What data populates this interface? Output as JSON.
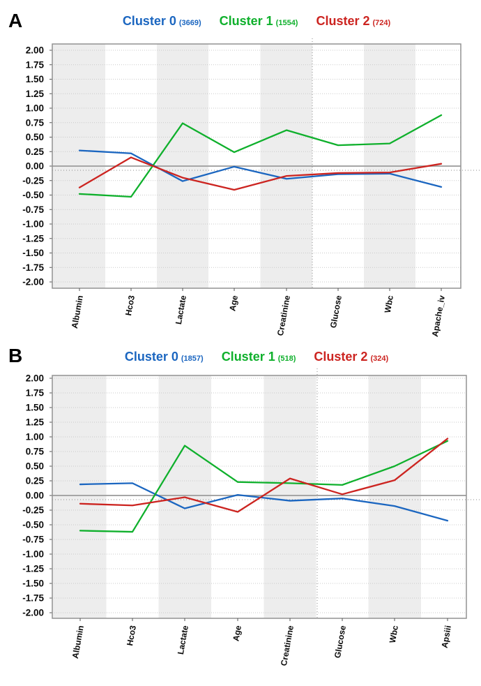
{
  "figure": {
    "description": "Two standardized cluster-profile line charts",
    "background": "#ffffff"
  },
  "panels": [
    {
      "label": "A"
    },
    {
      "label": "B"
    }
  ],
  "chart_data": [
    {
      "id": "A",
      "type": "line",
      "title": "",
      "legend_position": "top-center",
      "grid": "dotted horizontal lines, alternating gray vertical bands",
      "categories": [
        "Albumin",
        "Hco3",
        "Lactate",
        "Age",
        "Creatinine",
        "Glucose",
        "Wbc",
        "Apache_iv"
      ],
      "series": [
        {
          "name": "Cluster 0",
          "count": 3669,
          "color": "#1b66c0",
          "values": [
            0.27,
            0.22,
            -0.26,
            -0.01,
            -0.22,
            -0.14,
            -0.13,
            -0.36
          ]
        },
        {
          "name": "Cluster 1",
          "count": 1554,
          "color": "#0fb02c",
          "values": [
            -0.48,
            -0.53,
            0.74,
            0.24,
            0.62,
            0.36,
            0.39,
            0.88
          ]
        },
        {
          "name": "Cluster 2",
          "count": 724,
          "color": "#cc2420",
          "values": [
            -0.37,
            0.15,
            -0.2,
            -0.41,
            -0.17,
            -0.12,
            -0.11,
            0.04
          ]
        }
      ],
      "ylim": [
        -2.0,
        2.0
      ],
      "ytick_step": 0.25,
      "ytick_labels": [
        "2.00",
        "1.75",
        "1.50",
        "1.25",
        "1.00",
        "0.75",
        "0.50",
        "0.25",
        "0.00",
        "-0.25",
        "-0.50",
        "-0.75",
        "-1.00",
        "-1.25",
        "-1.50",
        "-1.75",
        "-2.00"
      ],
      "zero_line": true,
      "reference_lines": {
        "horizontal_dotted_at": -0.08,
        "vertical_dotted_between": [
          "Creatinine",
          "Glucose"
        ]
      },
      "xlabel": "",
      "ylabel": ""
    },
    {
      "id": "B",
      "type": "line",
      "title": "",
      "legend_position": "top-center",
      "grid": "dotted horizontal lines, alternating gray vertical bands",
      "categories": [
        "Albumin",
        "Hco3",
        "Lactate",
        "Age",
        "Creatinine",
        "Glucose",
        "Wbc",
        "Apsiii"
      ],
      "series": [
        {
          "name": "Cluster 0",
          "count": 1857,
          "color": "#1b66c0",
          "values": [
            0.19,
            0.21,
            -0.22,
            0.01,
            -0.09,
            -0.05,
            -0.18,
            -0.43
          ]
        },
        {
          "name": "Cluster 1",
          "count": 518,
          "color": "#0fb02c",
          "values": [
            -0.6,
            -0.62,
            0.85,
            0.23,
            0.21,
            0.18,
            0.5,
            0.93
          ]
        },
        {
          "name": "Cluster 2",
          "count": 324,
          "color": "#cc2420",
          "values": [
            -0.14,
            -0.17,
            -0.03,
            -0.28,
            0.29,
            0.02,
            0.26,
            0.97
          ]
        }
      ],
      "ylim": [
        -2.0,
        2.0
      ],
      "ytick_step": 0.25,
      "ytick_labels": [
        "2.00",
        "1.75",
        "1.50",
        "1.25",
        "1.00",
        "0.75",
        "0.50",
        "0.25",
        "0.00",
        "-0.25",
        "-0.50",
        "-0.75",
        "-1.00",
        "-1.25",
        "-1.50",
        "-1.75",
        "-2.00"
      ],
      "zero_line": true,
      "reference_lines": {
        "horizontal_dotted_at": -0.07,
        "vertical_dotted_between": [
          "Creatinine",
          "Glucose"
        ]
      },
      "xlabel": "",
      "ylabel": ""
    }
  ],
  "style_tokens": {
    "band_fill": "#ededed",
    "grid_dotted": "#c9c9c9",
    "zero_line_color": "#a6a6a6",
    "plot_border": "#929292",
    "tick_color": "#555555",
    "ref_dotted": "#8a8a8a"
  }
}
